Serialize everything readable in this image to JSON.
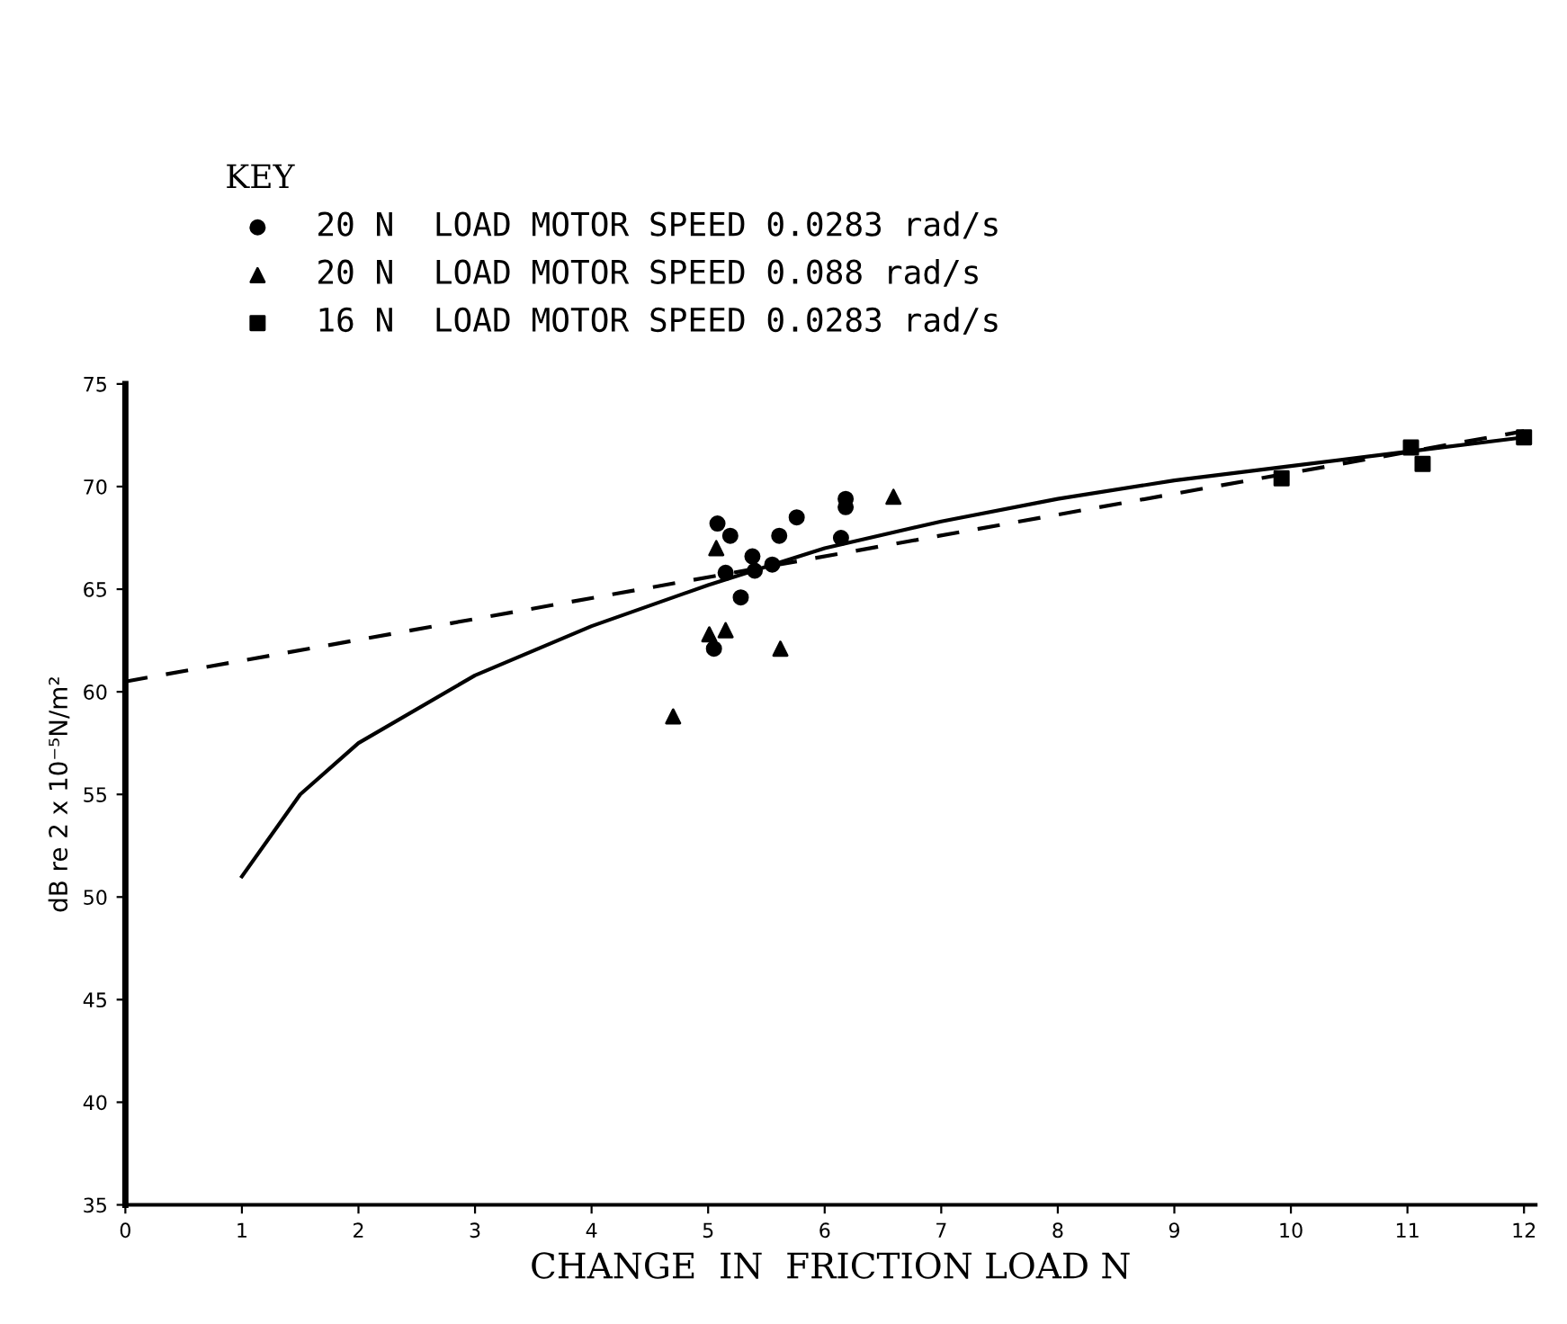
{
  "chart_data": {
    "type": "scatter",
    "xlabel": "CHANGE  IN  FRICTION LOAD N",
    "ylabel": "dB re 2 x 10⁻⁵N/m²",
    "legend_title": "KEY",
    "legend": "top",
    "grid": false,
    "xlim": [
      0,
      12.1
    ],
    "xticks": [
      0,
      1,
      2,
      3,
      4,
      5,
      6,
      7,
      8,
      9,
      10,
      11,
      12
    ],
    "ylim": [
      35,
      75
    ],
    "yticks": [
      35,
      40,
      45,
      50,
      55,
      60,
      65,
      70,
      75
    ],
    "series": [
      {
        "name": "20 N  LOAD MOTOR SPEED 0.0283 rad/s",
        "color": "#000000",
        "marker": "circle",
        "x": [
          5.08,
          5.19,
          5.38,
          5.15,
          5.4,
          5.55,
          5.28,
          5.61,
          5.76,
          6.18,
          6.18,
          6.14,
          5.05
        ],
        "values": [
          68.2,
          67.6,
          66.6,
          65.8,
          65.9,
          66.2,
          64.6,
          67.6,
          68.5,
          69.4,
          69.0,
          67.5,
          62.1
        ]
      },
      {
        "name": "20 N  LOAD MOTOR SPEED 0.088 rad/s",
        "color": "#000000",
        "marker": "triangle",
        "x": [
          5.07,
          5.01,
          5.15,
          5.62,
          4.7,
          6.59
        ],
        "values": [
          67.0,
          62.8,
          63.0,
          62.1,
          58.8,
          69.5
        ]
      },
      {
        "name": "16 N  LOAD MOTOR SPEED 0.0283 rad/s",
        "color": "#000000",
        "marker": "square",
        "x": [
          9.92,
          11.03,
          11.13,
          12.0
        ],
        "values": [
          70.4,
          71.9,
          71.1,
          72.4
        ]
      },
      {
        "type": "line",
        "color": "#000000",
        "line_style": "solid",
        "marker": "none",
        "x": [
          1,
          1.5,
          2,
          3,
          4,
          5,
          6,
          7,
          8,
          9,
          10,
          11,
          12
        ],
        "values": [
          51,
          55,
          57.5,
          60.8,
          63.2,
          65.2,
          67,
          68.3,
          69.4,
          70.3,
          71,
          71.7,
          72.4
        ]
      },
      {
        "type": "line",
        "color": "#000000",
        "line_style": "dashed",
        "marker": "none",
        "x": [
          0,
          12
        ],
        "values": [
          60.5,
          72.7
        ]
      }
    ]
  }
}
